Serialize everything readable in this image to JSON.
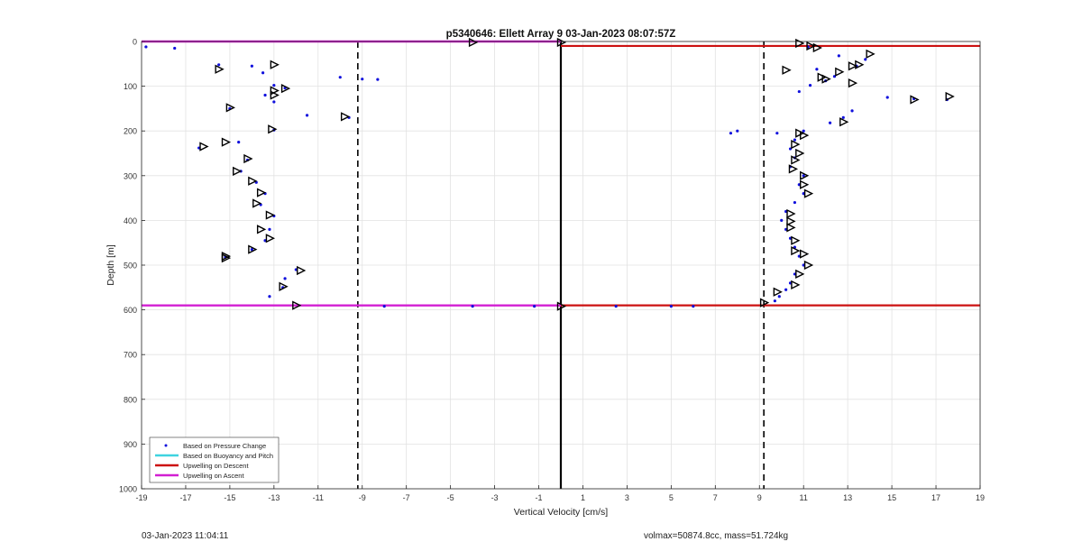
{
  "footer": {
    "timestamp": "03-Jan-2023 11:04:11",
    "stats": "volmax=50874.8cc, mass=51.724kg"
  },
  "chart_data": {
    "type": "scatter",
    "title": "p5340646: Ellett Array 9 03-Jan-2023 08:07:57Z",
    "xlabel": "Vertical Velocity [cm/s]",
    "ylabel": "Depth [m]",
    "xlim": [
      -19,
      19
    ],
    "ylim": [
      0,
      1000
    ],
    "y_reversed": true,
    "grid": true,
    "legend_position": "bottom-left",
    "xticks": [
      -19,
      -17,
      -15,
      -13,
      -11,
      -9,
      -7,
      -5,
      -3,
      -1,
      1,
      3,
      5,
      7,
      9,
      11,
      13,
      15,
      17,
      19
    ],
    "yticks": [
      0,
      100,
      200,
      300,
      400,
      500,
      600,
      700,
      800,
      900,
      1000
    ],
    "reference_lines": {
      "zero_velocity": 0,
      "dashed": [
        -9.2,
        9.2
      ],
      "upwelling_ascent_depths": [
        0,
        590
      ],
      "upwelling_descent_depths": [
        10,
        590
      ]
    },
    "colors": {
      "pressure_points": "#1010dd",
      "buoyancy_pitch": "#3fd3e0",
      "descent": "#cc1111",
      "ascent": "#d21fd2",
      "markers": "#000000"
    },
    "series": [
      {
        "name": "Based on Pressure Change",
        "descent": [
          [
            11.2,
            12
          ],
          [
            12.6,
            32
          ],
          [
            13.8,
            40
          ],
          [
            13.4,
            55
          ],
          [
            11.6,
            62
          ],
          [
            12.4,
            78
          ],
          [
            12.0,
            88
          ],
          [
            11.3,
            98
          ],
          [
            10.8,
            112
          ],
          [
            14.8,
            125
          ],
          [
            16.0,
            128
          ],
          [
            17.5,
            130
          ],
          [
            13.2,
            155
          ],
          [
            12.8,
            170
          ],
          [
            12.2,
            182
          ],
          [
            11.0,
            200
          ],
          [
            8.0,
            200
          ],
          [
            7.7,
            205
          ],
          [
            9.8,
            205
          ],
          [
            10.6,
            220
          ],
          [
            10.4,
            240
          ],
          [
            10.6,
            260
          ],
          [
            10.4,
            280
          ],
          [
            11.0,
            300
          ],
          [
            10.8,
            320
          ],
          [
            11.0,
            340
          ],
          [
            10.6,
            360
          ],
          [
            10.2,
            380
          ],
          [
            10.0,
            400
          ],
          [
            10.2,
            420
          ],
          [
            10.4,
            440
          ],
          [
            10.6,
            460
          ],
          [
            10.8,
            480
          ],
          [
            11.0,
            500
          ],
          [
            10.6,
            520
          ],
          [
            10.4,
            540
          ],
          [
            10.2,
            555
          ],
          [
            9.9,
            570
          ],
          [
            9.7,
            580
          ]
        ],
        "ascent": [
          [
            -18.8,
            12
          ],
          [
            -17.5,
            15
          ],
          [
            -15.5,
            52
          ],
          [
            -14.0,
            55
          ],
          [
            -13.5,
            70
          ],
          [
            -10.0,
            80
          ],
          [
            -9.0,
            84
          ],
          [
            -8.3,
            85
          ],
          [
            -13.0,
            98
          ],
          [
            -12.5,
            104
          ],
          [
            -13.4,
            120
          ],
          [
            -13.0,
            135
          ],
          [
            -15.0,
            150
          ],
          [
            -11.5,
            165
          ],
          [
            -9.6,
            170
          ],
          [
            -13.0,
            198
          ],
          [
            -14.6,
            225
          ],
          [
            -16.4,
            238
          ],
          [
            -14.2,
            265
          ],
          [
            -14.5,
            290
          ],
          [
            -13.8,
            315
          ],
          [
            -13.4,
            340
          ],
          [
            -13.6,
            365
          ],
          [
            -13.0,
            390
          ],
          [
            -13.2,
            420
          ],
          [
            -13.4,
            445
          ],
          [
            -14.0,
            465
          ],
          [
            -15.2,
            482
          ],
          [
            -12.0,
            510
          ],
          [
            -12.5,
            530
          ],
          [
            -12.6,
            550
          ],
          [
            -13.2,
            570
          ],
          [
            -8.0,
            592
          ],
          [
            -4.0,
            592
          ],
          [
            -1.2,
            592
          ],
          [
            2.5,
            592
          ],
          [
            5.0,
            592
          ],
          [
            6.0,
            592
          ]
        ]
      },
      {
        "name": "Based on Buoyancy and Pitch",
        "descent": [],
        "ascent": []
      },
      {
        "name": "Upwelling on Descent",
        "descent": [],
        "ascent": []
      },
      {
        "name": "Upwelling on Ascent",
        "descent": [],
        "ascent": []
      }
    ],
    "triangle_markers": [
      [
        -4.0,
        2
      ],
      [
        0.0,
        2
      ],
      [
        10.8,
        4
      ],
      [
        11.3,
        10
      ],
      [
        11.6,
        14
      ],
      [
        14.0,
        28
      ],
      [
        13.5,
        52
      ],
      [
        13.2,
        55
      ],
      [
        12.6,
        68
      ],
      [
        11.8,
        80
      ],
      [
        12.0,
        84
      ],
      [
        13.2,
        93
      ],
      [
        10.2,
        64
      ],
      [
        16.0,
        130
      ],
      [
        17.6,
        123
      ],
      [
        12.8,
        180
      ],
      [
        10.8,
        205
      ],
      [
        11.0,
        210
      ],
      [
        10.6,
        230
      ],
      [
        10.8,
        250
      ],
      [
        10.6,
        265
      ],
      [
        10.5,
        285
      ],
      [
        11.0,
        300
      ],
      [
        11.0,
        320
      ],
      [
        11.2,
        340
      ],
      [
        10.4,
        385
      ],
      [
        10.4,
        402
      ],
      [
        10.4,
        416
      ],
      [
        10.6,
        445
      ],
      [
        10.6,
        468
      ],
      [
        11.0,
        475
      ],
      [
        11.2,
        500
      ],
      [
        10.8,
        520
      ],
      [
        10.6,
        544
      ],
      [
        9.8,
        560
      ],
      [
        9.2,
        584
      ],
      [
        -12.0,
        590
      ],
      [
        0.0,
        592
      ],
      [
        -15.2,
        480
      ],
      [
        -15.0,
        148
      ],
      [
        -15.5,
        62
      ],
      [
        -13.0,
        52
      ],
      [
        -12.5,
        105
      ],
      [
        -13.0,
        110
      ],
      [
        -13.0,
        120
      ],
      [
        -9.8,
        168
      ],
      [
        -13.1,
        196
      ],
      [
        -15.2,
        225
      ],
      [
        -16.2,
        235
      ],
      [
        -14.2,
        262
      ],
      [
        -14.7,
        290
      ],
      [
        -14.0,
        312
      ],
      [
        -13.6,
        338
      ],
      [
        -13.8,
        362
      ],
      [
        -13.2,
        388
      ],
      [
        -13.6,
        420
      ],
      [
        -13.2,
        440
      ],
      [
        -14.0,
        465
      ],
      [
        -15.2,
        484
      ],
      [
        -11.8,
        512
      ],
      [
        -12.6,
        548
      ]
    ]
  }
}
